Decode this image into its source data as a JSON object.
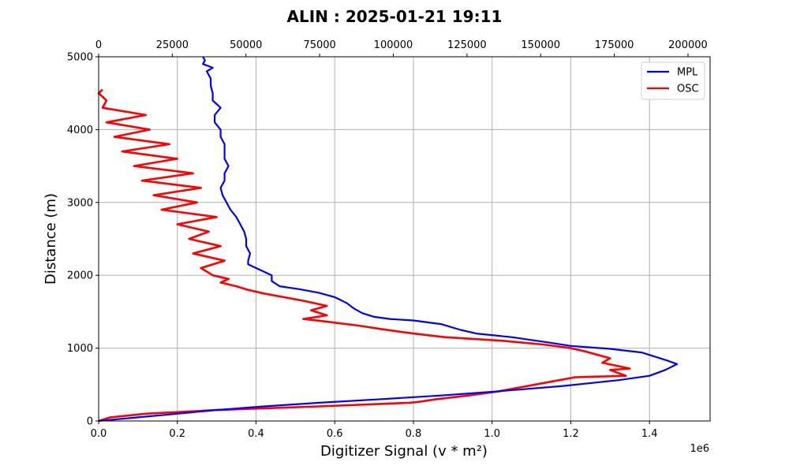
{
  "chart_data": {
    "type": "line",
    "title": "ALIN : 2025-01-21 19:11",
    "xlabel": "Digitizer Signal (v * m²)",
    "ylabel": "Distance (m)",
    "x_offset_text": "1e6",
    "xlim": [
      0,
      1554000
    ],
    "ylim": [
      0,
      5000
    ],
    "x_ticks": [
      0,
      200000,
      400000,
      600000,
      800000,
      1000000,
      1200000,
      1400000
    ],
    "x_tick_labels": [
      "0.0",
      "0.2",
      "0.4",
      "0.6",
      "0.8",
      "1.0",
      "1.2",
      "1.4"
    ],
    "y_ticks": [
      0,
      1000,
      2000,
      3000,
      4000,
      5000
    ],
    "y_tick_labels": [
      "0",
      "1000",
      "2000",
      "3000",
      "4000",
      "5000"
    ],
    "top_axis": {
      "xlim": [
        0,
        207500
      ],
      "ticks": [
        0,
        25000,
        50000,
        75000,
        100000,
        125000,
        150000,
        175000,
        200000
      ],
      "tick_labels": [
        "0",
        "25000",
        "50000",
        "75000",
        "100000",
        "125000",
        "150000",
        "175000",
        "200000"
      ]
    },
    "grid": true,
    "legend_position": "top-right",
    "series": [
      {
        "name": "MPL",
        "color": "#0000ff",
        "axis": "bottom",
        "points": [
          [
            0,
            0
          ],
          [
            100000,
            50
          ],
          [
            200000,
            100
          ],
          [
            300000,
            150
          ],
          [
            420000,
            200
          ],
          [
            560000,
            250
          ],
          [
            720000,
            300
          ],
          [
            870000,
            350
          ],
          [
            1000000,
            400
          ],
          [
            1180000,
            480
          ],
          [
            1320000,
            560
          ],
          [
            1400000,
            620
          ],
          [
            1440000,
            700
          ],
          [
            1470000,
            780
          ],
          [
            1445000,
            830
          ],
          [
            1380000,
            940
          ],
          [
            1300000,
            990
          ],
          [
            1200000,
            1030
          ],
          [
            1140000,
            1080
          ],
          [
            1050000,
            1150
          ],
          [
            960000,
            1200
          ],
          [
            920000,
            1250
          ],
          [
            870000,
            1330
          ],
          [
            800000,
            1380
          ],
          [
            740000,
            1400
          ],
          [
            700000,
            1430
          ],
          [
            670000,
            1480
          ],
          [
            650000,
            1540
          ],
          [
            630000,
            1620
          ],
          [
            600000,
            1700
          ],
          [
            560000,
            1760
          ],
          [
            510000,
            1810
          ],
          [
            460000,
            1850
          ],
          [
            440000,
            1920
          ],
          [
            440000,
            2000
          ],
          [
            420000,
            2050
          ],
          [
            400000,
            2100
          ],
          [
            380000,
            2150
          ],
          [
            380000,
            2200
          ],
          [
            385000,
            2300
          ],
          [
            375000,
            2400
          ],
          [
            375000,
            2500
          ],
          [
            370000,
            2600
          ],
          [
            360000,
            2700
          ],
          [
            350000,
            2800
          ],
          [
            335000,
            2900
          ],
          [
            325000,
            3000
          ],
          [
            315000,
            3100
          ],
          [
            310000,
            3200
          ],
          [
            320000,
            3300
          ],
          [
            320000,
            3400
          ],
          [
            330000,
            3500
          ],
          [
            320000,
            3600
          ],
          [
            320000,
            3700
          ],
          [
            320000,
            3800
          ],
          [
            310000,
            3900
          ],
          [
            310000,
            4000
          ],
          [
            295000,
            4100
          ],
          [
            295000,
            4200
          ],
          [
            310000,
            4300
          ],
          [
            290000,
            4400
          ],
          [
            290000,
            4500
          ],
          [
            285000,
            4600
          ],
          [
            285000,
            4700
          ],
          [
            275000,
            4800
          ],
          [
            290000,
            4850
          ],
          [
            265000,
            4900
          ],
          [
            270000,
            4950
          ],
          [
            265000,
            5000
          ]
        ]
      },
      {
        "name": "OSC",
        "color": "#ff0000",
        "axis": "bottom",
        "points": [
          [
            0,
            0
          ],
          [
            30000,
            50
          ],
          [
            120000,
            100
          ],
          [
            300000,
            150
          ],
          [
            560000,
            200
          ],
          [
            790000,
            250
          ],
          [
            810000,
            260
          ],
          [
            860000,
            300
          ],
          [
            940000,
            350
          ],
          [
            1010000,
            400
          ],
          [
            1060000,
            450
          ],
          [
            1110000,
            500
          ],
          [
            1160000,
            550
          ],
          [
            1210000,
            600
          ],
          [
            1340000,
            620
          ],
          [
            1300000,
            700
          ],
          [
            1350000,
            720
          ],
          [
            1280000,
            800
          ],
          [
            1300000,
            860
          ],
          [
            1240000,
            950
          ],
          [
            1200000,
            1000
          ],
          [
            1130000,
            1050
          ],
          [
            1030000,
            1100
          ],
          [
            880000,
            1150
          ],
          [
            800000,
            1200
          ],
          [
            720000,
            1260
          ],
          [
            660000,
            1310
          ],
          [
            570000,
            1370
          ],
          [
            520000,
            1400
          ],
          [
            580000,
            1450
          ],
          [
            540000,
            1520
          ],
          [
            580000,
            1580
          ],
          [
            520000,
            1650
          ],
          [
            470000,
            1700
          ],
          [
            420000,
            1750
          ],
          [
            380000,
            1800
          ],
          [
            350000,
            1850
          ],
          [
            310000,
            1900
          ],
          [
            330000,
            1950
          ],
          [
            290000,
            2000
          ],
          [
            260000,
            2100
          ],
          [
            320000,
            2200
          ],
          [
            240000,
            2300
          ],
          [
            310000,
            2400
          ],
          [
            230000,
            2500
          ],
          [
            280000,
            2600
          ],
          [
            200000,
            2700
          ],
          [
            300000,
            2800
          ],
          [
            160000,
            2900
          ],
          [
            250000,
            3000
          ],
          [
            140000,
            3100
          ],
          [
            260000,
            3200
          ],
          [
            110000,
            3300
          ],
          [
            240000,
            3400
          ],
          [
            90000,
            3500
          ],
          [
            200000,
            3600
          ],
          [
            60000,
            3700
          ],
          [
            180000,
            3800
          ],
          [
            40000,
            3900
          ],
          [
            130000,
            4000
          ],
          [
            20000,
            4100
          ],
          [
            120000,
            4200
          ],
          [
            10000,
            4300
          ],
          [
            20000,
            4400
          ],
          [
            0,
            4500
          ],
          [
            10000,
            4550
          ]
        ]
      }
    ]
  }
}
